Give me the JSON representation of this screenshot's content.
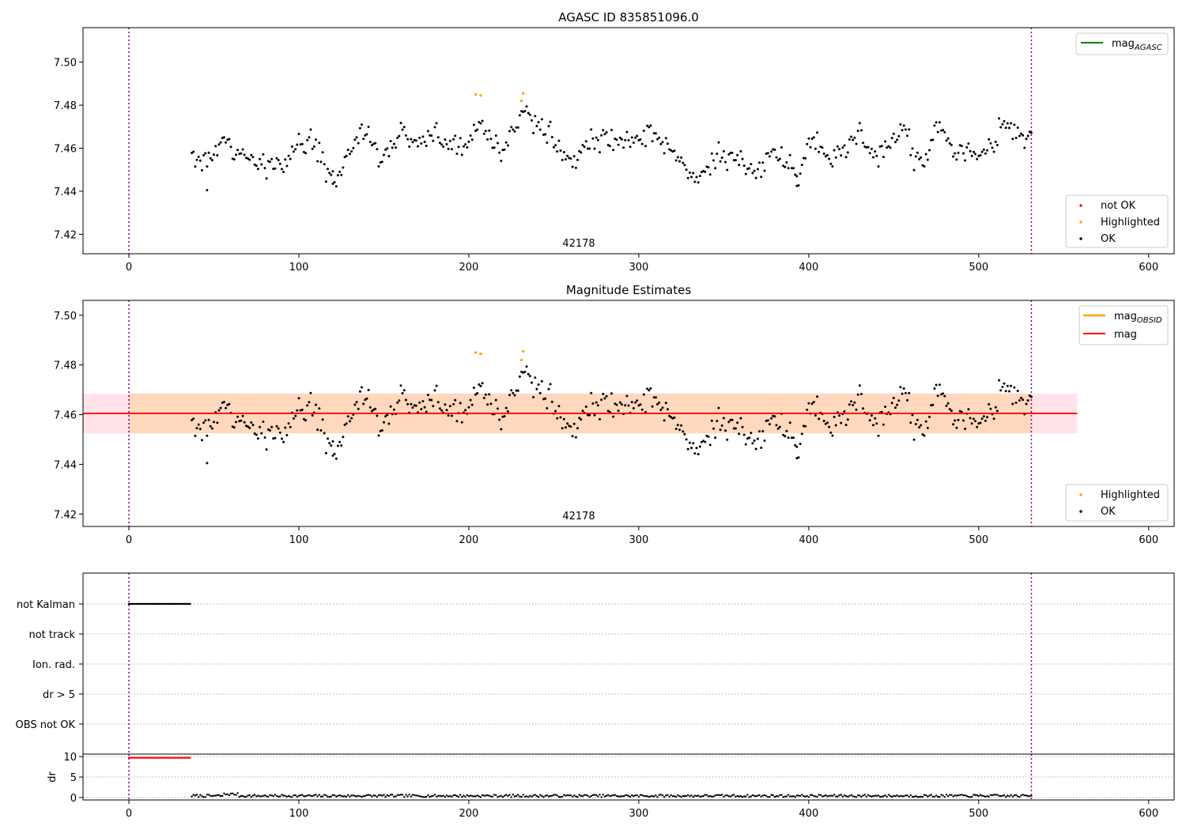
{
  "chart_data": [
    {
      "type": "scatter",
      "title": "AGASC ID 835851096.0",
      "xlim": [
        -27,
        615
      ],
      "ylim": [
        7.411,
        7.516
      ],
      "yticks": [
        7.42,
        7.44,
        7.46,
        7.48,
        7.5
      ],
      "ytick_labels": [
        "7.42",
        "7.44",
        "7.46",
        "7.48",
        "7.50"
      ],
      "xticks": [
        0,
        100,
        200,
        300,
        400,
        500,
        600
      ],
      "xtick_labels": [
        "0",
        "100",
        "200",
        "300",
        "400",
        "500",
        "600"
      ],
      "vlines": [
        0,
        531
      ],
      "annotation": "42178",
      "legend_upper": [
        {
          "label": "mag",
          "sub": "AGASC",
          "color": "#008000"
        }
      ],
      "legend_lower": [
        {
          "label": "not OK",
          "color": "#ff0000"
        },
        {
          "label": "Highlighted",
          "color": "#ffa500"
        },
        {
          "label": "OK",
          "color": "#000000"
        }
      ],
      "highlighted": [
        [
          204,
          7.485
        ],
        [
          207,
          7.4845
        ],
        [
          232,
          7.4855
        ],
        [
          231,
          7.482
        ]
      ],
      "series_seed": 42178
    },
    {
      "type": "scatter",
      "title": "Magnitude Estimates",
      "xlim": [
        -27,
        615
      ],
      "ylim": [
        7.415,
        7.506
      ],
      "yticks": [
        7.42,
        7.44,
        7.46,
        7.48,
        7.5
      ],
      "ytick_labels": [
        "7.42",
        "7.44",
        "7.46",
        "7.48",
        "7.50"
      ],
      "xticks": [
        0,
        100,
        200,
        300,
        400,
        500,
        600
      ],
      "xtick_labels": [
        "0",
        "100",
        "200",
        "300",
        "400",
        "500",
        "600"
      ],
      "vlines": [
        0,
        531
      ],
      "annotation": "42178",
      "mean_mag": 7.4605,
      "band_outer": [
        7.4525,
        7.4685
      ],
      "band_inner": [
        7.4525,
        7.4685
      ],
      "band_extent": [
        -27,
        558
      ],
      "legend_upper": [
        {
          "label": "mag",
          "sub": "OBSID",
          "color": "#ffa500"
        },
        {
          "label": "mag",
          "sub": "",
          "color": "#ff0000"
        }
      ],
      "legend_lower": [
        {
          "label": "Highlighted",
          "color": "#ffa500"
        },
        {
          "label": "OK",
          "color": "#000000"
        }
      ],
      "highlighted": [
        [
          204,
          7.485
        ],
        [
          207,
          7.4845
        ],
        [
          232,
          7.4855
        ],
        [
          231,
          7.482
        ]
      ]
    },
    {
      "type": "scatter",
      "title": "",
      "categories": [
        "not Kalman",
        "not track",
        "Ion. rad.",
        "dr > 5",
        "OBS not OK"
      ],
      "flag_ranges": {
        "not Kalman": [
          0,
          36
        ]
      },
      "xlim": [
        -27,
        615
      ],
      "vlines": [
        0,
        531
      ]
    },
    {
      "type": "scatter",
      "ylabel": "dr",
      "ylim": [
        -0.6,
        10.6
      ],
      "yticks": [
        0,
        5,
        10
      ],
      "ytick_labels": [
        "0",
        "5",
        "10"
      ],
      "xticks": [
        0,
        100,
        200,
        300,
        400,
        500,
        600
      ],
      "xtick_labels": [
        "0",
        "100",
        "200",
        "300",
        "400",
        "500",
        "600"
      ],
      "xlim": [
        -27,
        615
      ],
      "vlines": [
        0,
        531
      ],
      "red_range": [
        0,
        36
      ],
      "red_value": 9.7,
      "black_range": [
        37,
        531
      ],
      "black_value": 0.4
    }
  ]
}
